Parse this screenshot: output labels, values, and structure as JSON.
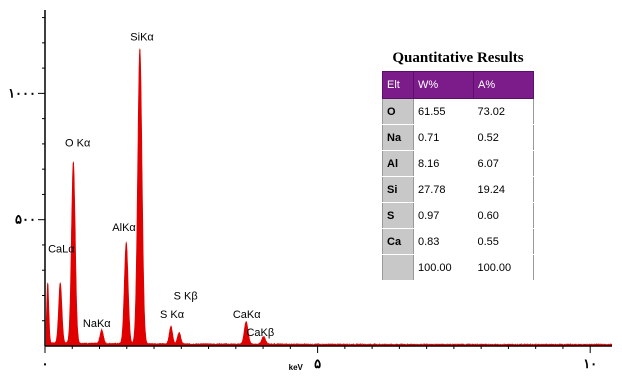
{
  "chart_data": {
    "type": "line",
    "xlabel": "keV",
    "xlim": [
      0,
      10.4
    ],
    "ylim": [
      0,
      1330
    ],
    "x_ticks": [
      {
        "value": 0,
        "label": "۰"
      },
      {
        "value": 5,
        "label": "۵"
      },
      {
        "value": 10,
        "label": "۱۰"
      }
    ],
    "y_ticks": [
      {
        "value": 500,
        "label": "۵۰۰"
      },
      {
        "value": 1000,
        "label": "۱۰۰۰"
      }
    ],
    "series": [
      {
        "color": "#e00000",
        "peaks": [
          {
            "x": 0.05,
            "y": 240,
            "w": 0.02
          },
          {
            "x": 0.28,
            "y": 240,
            "w": 0.03
          },
          {
            "x": 0.52,
            "y": 720,
            "w": 0.035
          },
          {
            "x": 1.04,
            "y": 55,
            "w": 0.03
          },
          {
            "x": 1.49,
            "y": 400,
            "w": 0.035
          },
          {
            "x": 1.74,
            "y": 1170,
            "w": 0.04
          },
          {
            "x": 2.31,
            "y": 70,
            "w": 0.03
          },
          {
            "x": 2.46,
            "y": 45,
            "w": 0.03
          },
          {
            "x": 3.69,
            "y": 90,
            "w": 0.035
          },
          {
            "x": 4.01,
            "y": 30,
            "w": 0.035
          }
        ]
      }
    ],
    "annotations": [
      {
        "label": "SiKα",
        "x": 1.78,
        "y": 1210
      },
      {
        "label": "O Kα",
        "x": 0.6,
        "y": 790
      },
      {
        "label": "AlKα",
        "x": 1.45,
        "y": 455
      },
      {
        "label": "CaLα",
        "x": 0.3,
        "y": 370
      },
      {
        "label": "NaKα",
        "x": 0.95,
        "y": 75
      },
      {
        "label": "S Kβ",
        "x": 2.58,
        "y": 185
      },
      {
        "label": "S Kα",
        "x": 2.33,
        "y": 110
      },
      {
        "label": "CaKα",
        "x": 3.7,
        "y": 110
      },
      {
        "label": "CaKβ",
        "x": 3.95,
        "y": 40
      }
    ]
  },
  "results": {
    "title": "Quantitative Results",
    "headers": [
      "Elt",
      "W%",
      "A%"
    ],
    "rows": [
      [
        "O",
        "61.55",
        "73.02"
      ],
      [
        "Na",
        "0.71",
        "0.52"
      ],
      [
        "Al",
        "8.16",
        "6.07"
      ],
      [
        "Si",
        "27.78",
        "19.24"
      ],
      [
        "S",
        "0.97",
        "0.60"
      ],
      [
        "Ca",
        "0.83",
        "0.55"
      ],
      [
        "",
        "100.00",
        "100.00"
      ]
    ]
  }
}
